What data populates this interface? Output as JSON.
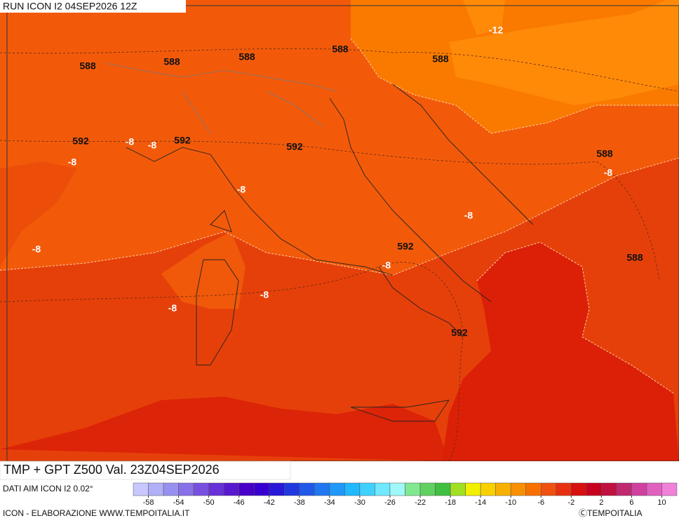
{
  "header": {
    "run": "RUN ICON I2 04SEP2026 12Z"
  },
  "contour_labels": [
    "588",
    "588",
    "588",
    "588",
    "588",
    "592",
    "592",
    "592",
    "592",
    "592",
    "588",
    "588",
    "-12",
    "-8",
    "-8",
    "-8",
    "-8",
    "-8",
    "-8",
    "-8",
    "-8",
    "-8",
    "-8"
  ],
  "footer": {
    "title": "TMP + GPT Z500 Val. 23Z04SEP2026",
    "source": "DATI AIM ICON I2 0.02°",
    "credit": "ICON - ELABORAZIONE WWW.TEMPOITALIA.IT",
    "copyright": "ⒸTEMPOITALIA"
  },
  "colorbar": {
    "colors": [
      "#c8c8ff",
      "#b0b0f8",
      "#9890f0",
      "#8870e8",
      "#7850e0",
      "#6830d8",
      "#5818d0",
      "#4800c8",
      "#3800d0",
      "#2818d8",
      "#2038e0",
      "#2058e8",
      "#2078f0",
      "#2098f8",
      "#20b8ff",
      "#40d0ff",
      "#70e8ff",
      "#a0f8f8",
      "#80e890",
      "#60d060",
      "#40c040",
      "#a0e020",
      "#f0f000",
      "#f8d000",
      "#f8b000",
      "#f89000",
      "#f87000",
      "#f05010",
      "#e83010",
      "#d81010",
      "#c80020",
      "#c01040",
      "#c02870",
      "#d040a0",
      "#e060c0",
      "#f080d8"
    ],
    "ticks": [
      -58,
      -54,
      -50,
      -46,
      -42,
      -38,
      -34,
      -30,
      -26,
      -22,
      -18,
      -14,
      -10,
      -6,
      -2,
      2,
      6,
      10
    ]
  }
}
